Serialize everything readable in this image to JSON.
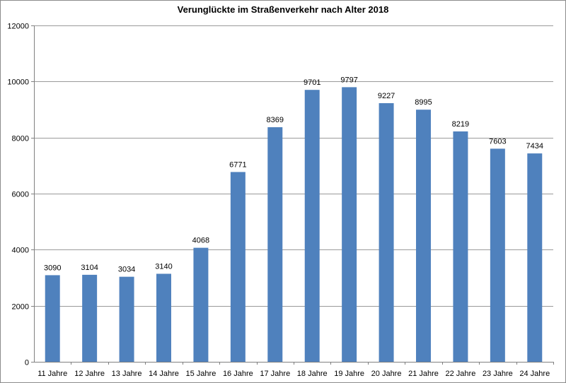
{
  "chart_data": {
    "type": "bar",
    "title": "Verunglückte im Straßenverkehr nach Alter 2018",
    "xlabel": "",
    "ylabel": "",
    "categories": [
      "11 Jahre",
      "12 Jahre",
      "13 Jahre",
      "14 Jahre",
      "15 Jahre",
      "16 Jahre",
      "17 Jahre",
      "18 Jahre",
      "19 Jahre",
      "20 Jahre",
      "21 Jahre",
      "22 Jahre",
      "23 Jahre",
      "24 Jahre"
    ],
    "values": [
      3090,
      3104,
      3034,
      3140,
      4068,
      6771,
      8369,
      9701,
      9797,
      9227,
      8995,
      8219,
      7603,
      7434
    ],
    "y_ticks": [
      "0",
      "2000",
      "4000",
      "6000",
      "8000",
      "10000",
      "12000"
    ],
    "ylim": [
      0,
      12000
    ],
    "grid": true,
    "legend": "none",
    "bar_color": "#4F81BD",
    "grid_color": "#9a9a9a"
  }
}
